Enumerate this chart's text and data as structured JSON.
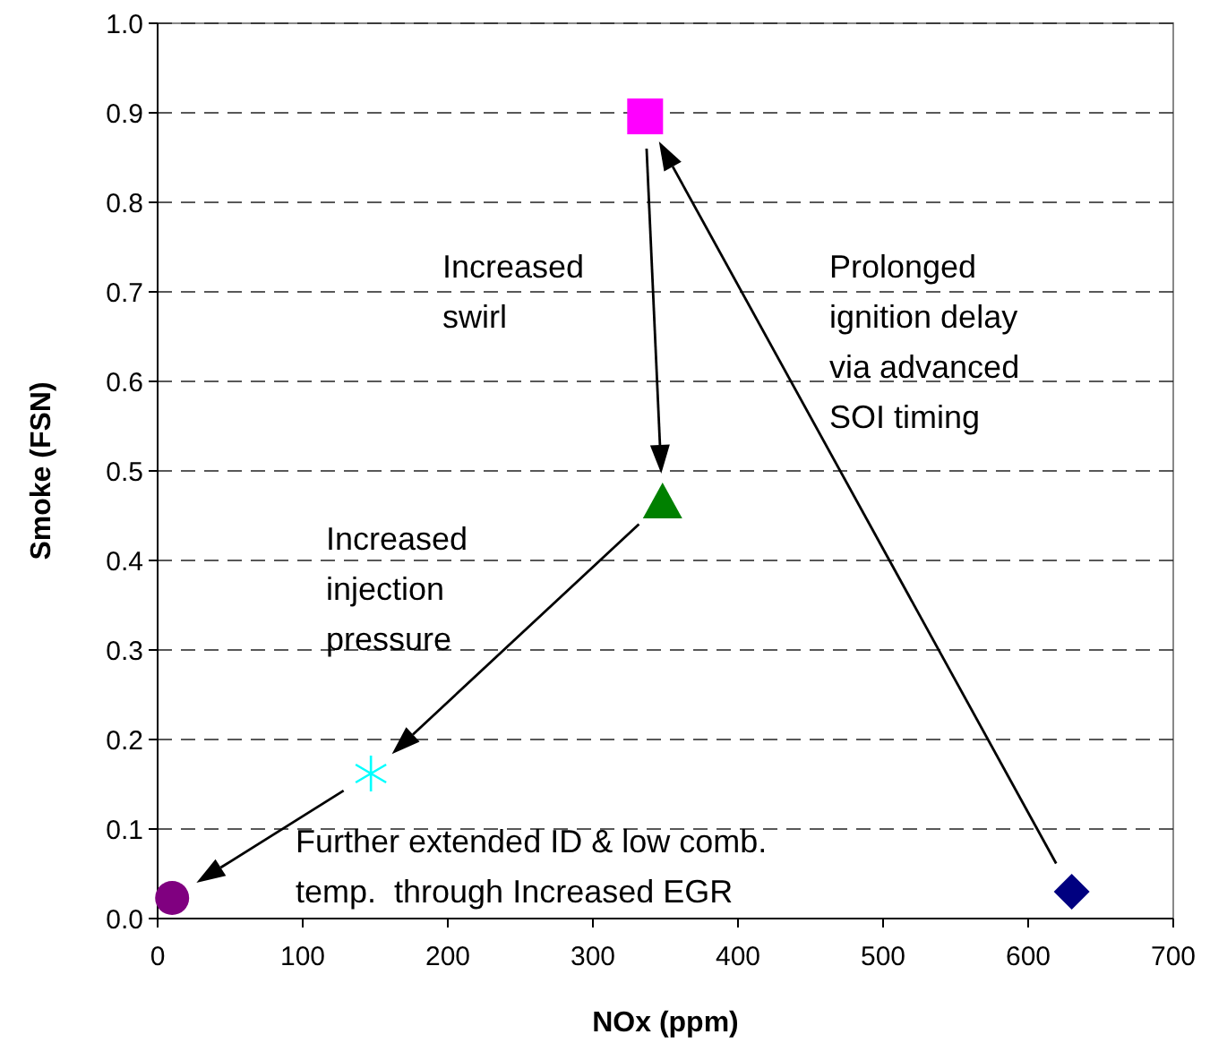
{
  "chart_data": {
    "type": "scatter",
    "xlabel": "NOx (ppm)",
    "ylabel": "Smoke (FSN)",
    "xlim": [
      0,
      700
    ],
    "xticks": [
      0,
      100,
      200,
      300,
      400,
      500,
      600,
      700
    ],
    "ylim": [
      0,
      1
    ],
    "yticks": [
      {
        "value": 0,
        "label": "0.0"
      },
      0.1,
      0.2,
      0.3,
      0.4,
      0.5,
      0.6,
      0.7,
      0.8,
      0.9,
      {
        "value": 1,
        "label": "1.0"
      }
    ],
    "grid": "y",
    "series": [
      {
        "color": "#000080",
        "marker": "diamond",
        "x": [
          630
        ],
        "values": [
          0.03
        ]
      },
      {
        "color": "#ff00ff",
        "marker": "square",
        "x": [
          336
        ],
        "values": [
          0.896
        ]
      },
      {
        "color": "#008000",
        "marker": "triangle",
        "x": [
          348
        ],
        "values": [
          0.465
        ]
      },
      {
        "color": "#00ffff",
        "marker": "cross",
        "x": [
          147
        ],
        "values": [
          0.162
        ]
      },
      {
        "color": "#800080",
        "marker": "circle",
        "x": [
          10
        ],
        "values": [
          0.023
        ]
      }
    ],
    "annotations": [
      "Prolonged\nignition delay\nvia advanced\nSOI timing",
      "Increased\nswirl",
      "Increased\ninjection\npressure",
      "Further extended ID & low comb.\ntemp.  through Increased EGR"
    ]
  }
}
